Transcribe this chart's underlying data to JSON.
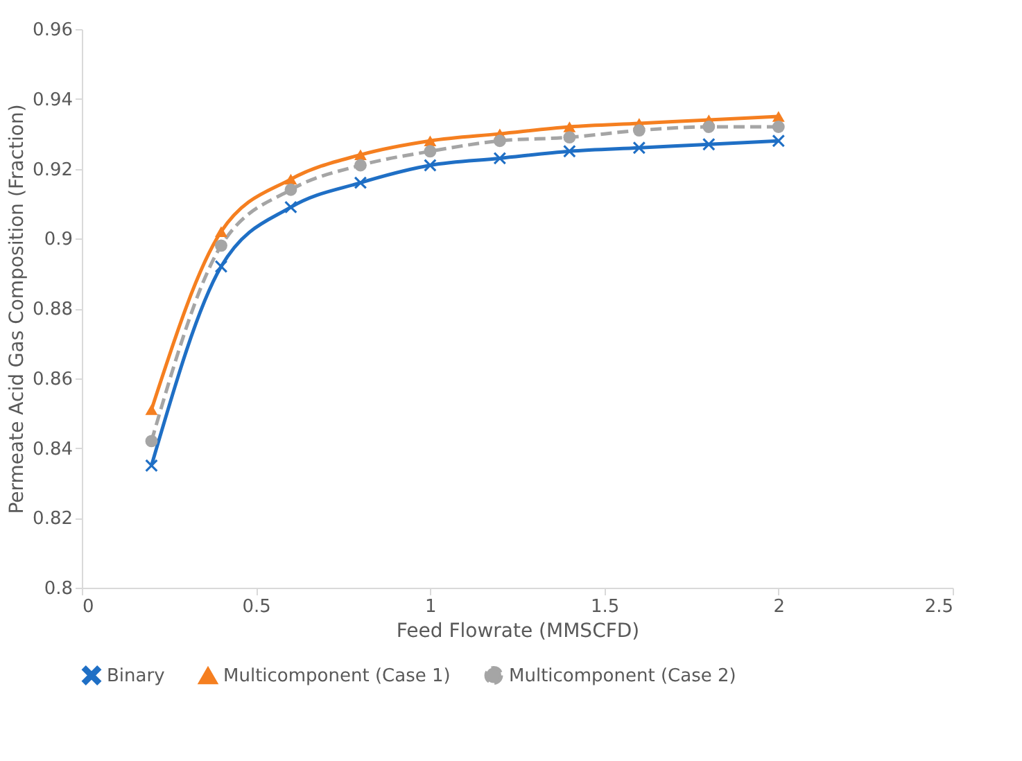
{
  "chart_data": {
    "type": "line",
    "xlabel": "Feed Flowrate (MMSCFD)",
    "ylabel": "Permeate Acid Gas  Composition (Fraction)",
    "x": [
      0.2,
      0.4,
      0.6,
      0.8,
      1.0,
      1.2,
      1.4,
      1.6,
      1.8,
      2.0
    ],
    "series": [
      {
        "name": "Binary",
        "color": "#1f6fc5",
        "marker": "cross",
        "line_style": "solid",
        "values": [
          0.835,
          0.892,
          0.909,
          0.916,
          0.921,
          0.923,
          0.925,
          0.926,
          0.927,
          0.928
        ]
      },
      {
        "name": "Multicomponent (Case 1)",
        "color": "#f57f20",
        "marker": "triangle",
        "line_style": "solid",
        "values": [
          0.851,
          0.902,
          0.917,
          0.924,
          0.928,
          0.93,
          0.932,
          0.933,
          0.934,
          0.935
        ]
      },
      {
        "name": "Multicomponent (Case 2)",
        "color": "#a5a5a5",
        "marker": "circle",
        "line_style": "dashed",
        "values": [
          0.842,
          0.898,
          0.914,
          0.921,
          0.925,
          0.928,
          0.929,
          0.931,
          0.932,
          0.932
        ]
      }
    ],
    "xlim": [
      0,
      2.5
    ],
    "xticks": [
      0,
      0.5,
      1,
      1.5,
      2,
      2.5
    ],
    "ylim": [
      0.8,
      0.96
    ],
    "yticks": [
      0.8,
      0.82,
      0.84,
      0.86,
      0.88,
      0.9,
      0.92,
      0.94,
      0.96
    ],
    "grid": false,
    "legend": "bottom"
  }
}
